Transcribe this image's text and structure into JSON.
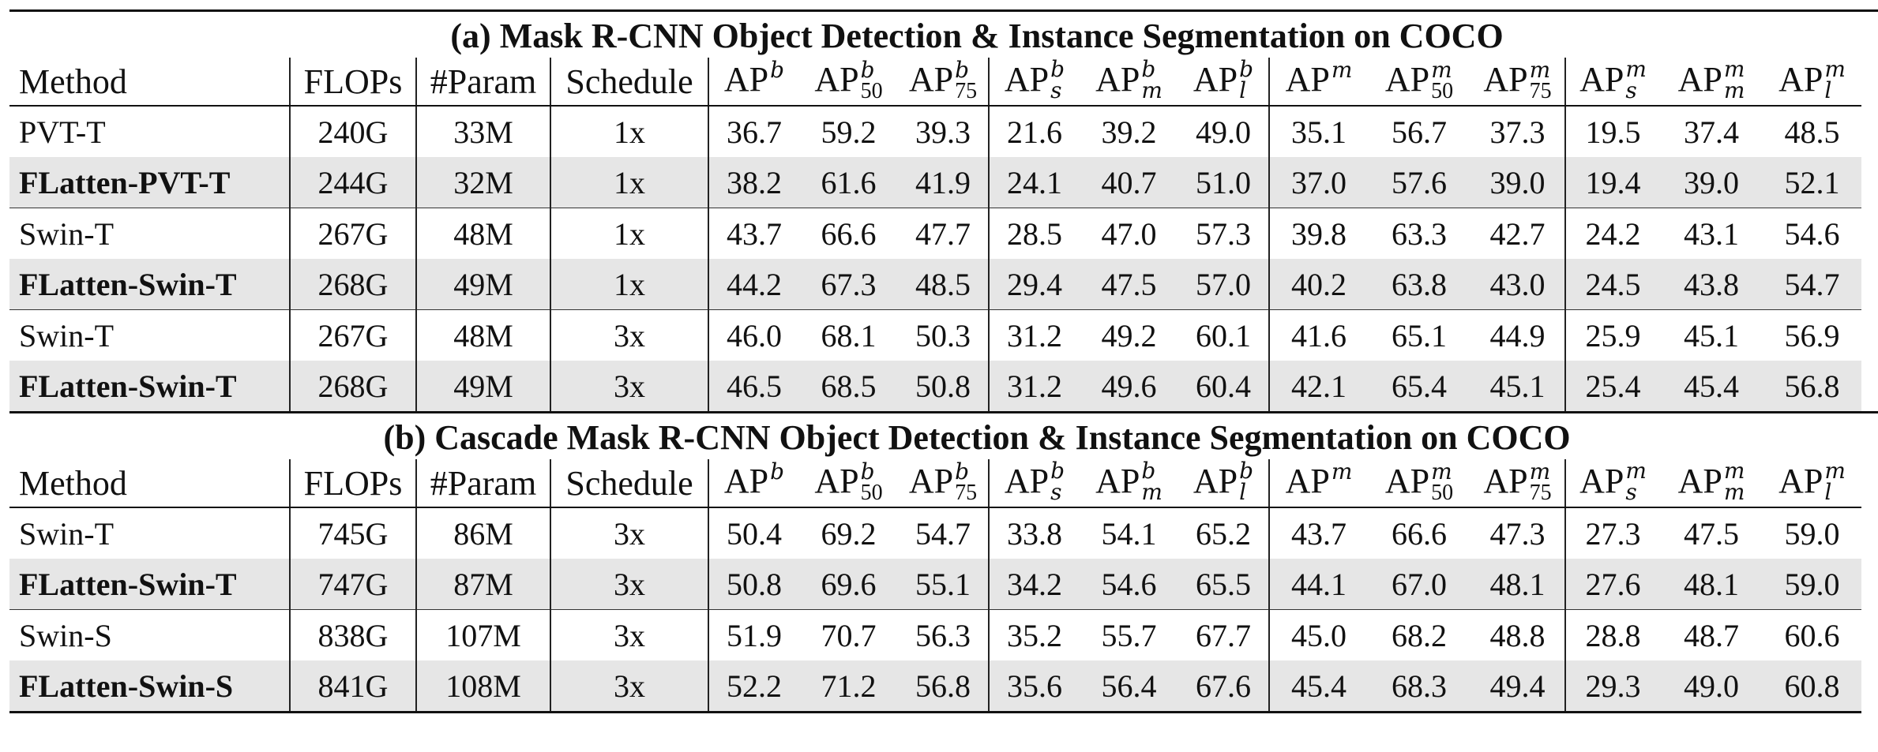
{
  "tables": [
    {
      "title": "(a) Mask R-CNN Object Detection & Instance Segmentation on COCO",
      "columns": {
        "method": "Method",
        "flops": "FLOPs",
        "param": "#Param",
        "schedule": "Schedule",
        "ap": [
          {
            "base": "AP",
            "sup": "b",
            "sub": ""
          },
          {
            "base": "AP",
            "sup": "b",
            "sub": "50"
          },
          {
            "base": "AP",
            "sup": "b",
            "sub": "75"
          },
          {
            "base": "AP",
            "sup": "b",
            "sub": "s"
          },
          {
            "base": "AP",
            "sup": "b",
            "sub": "m"
          },
          {
            "base": "AP",
            "sup": "b",
            "sub": "l"
          },
          {
            "base": "AP",
            "sup": "m",
            "sub": ""
          },
          {
            "base": "AP",
            "sup": "m",
            "sub": "50"
          },
          {
            "base": "AP",
            "sup": "m",
            "sub": "75"
          },
          {
            "base": "AP",
            "sup": "m",
            "sub": "s"
          },
          {
            "base": "AP",
            "sup": "m",
            "sub": "m"
          },
          {
            "base": "AP",
            "sup": "m",
            "sub": "l"
          }
        ]
      },
      "rows": [
        {
          "method": "PVT-T",
          "flops": "240G",
          "param": "33M",
          "schedule": "1x",
          "highlight": false,
          "values": [
            "36.7",
            "59.2",
            "39.3",
            "21.6",
            "39.2",
            "49.0",
            "35.1",
            "56.7",
            "37.3",
            "19.5",
            "37.4",
            "48.5"
          ]
        },
        {
          "method": "FLatten-PVT-T",
          "flops": "244G",
          "param": "32M",
          "schedule": "1x",
          "highlight": true,
          "values": [
            "38.2",
            "61.6",
            "41.9",
            "24.1",
            "40.7",
            "51.0",
            "37.0",
            "57.6",
            "39.0",
            "19.4",
            "39.0",
            "52.1"
          ]
        },
        {
          "method": "Swin-T",
          "flops": "267G",
          "param": "48M",
          "schedule": "1x",
          "highlight": false,
          "values": [
            "43.7",
            "66.6",
            "47.7",
            "28.5",
            "47.0",
            "57.3",
            "39.8",
            "63.3",
            "42.7",
            "24.2",
            "43.1",
            "54.6"
          ]
        },
        {
          "method": "FLatten-Swin-T",
          "flops": "268G",
          "param": "49M",
          "schedule": "1x",
          "highlight": true,
          "values": [
            "44.2",
            "67.3",
            "48.5",
            "29.4",
            "47.5",
            "57.0",
            "40.2",
            "63.8",
            "43.0",
            "24.5",
            "43.8",
            "54.7"
          ]
        },
        {
          "method": "Swin-T",
          "flops": "267G",
          "param": "48M",
          "schedule": "3x",
          "highlight": false,
          "values": [
            "46.0",
            "68.1",
            "50.3",
            "31.2",
            "49.2",
            "60.1",
            "41.6",
            "65.1",
            "44.9",
            "25.9",
            "45.1",
            "56.9"
          ]
        },
        {
          "method": "FLatten-Swin-T",
          "flops": "268G",
          "param": "49M",
          "schedule": "3x",
          "highlight": true,
          "values": [
            "46.5",
            "68.5",
            "50.8",
            "31.2",
            "49.6",
            "60.4",
            "42.1",
            "65.4",
            "45.1",
            "25.4",
            "45.4",
            "56.8"
          ]
        }
      ]
    },
    {
      "title": "(b) Cascade Mask R-CNN Object Detection & Instance Segmentation on COCO",
      "columns": {
        "method": "Method",
        "flops": "FLOPs",
        "param": "#Param",
        "schedule": "Schedule",
        "ap": [
          {
            "base": "AP",
            "sup": "b",
            "sub": ""
          },
          {
            "base": "AP",
            "sup": "b",
            "sub": "50"
          },
          {
            "base": "AP",
            "sup": "b",
            "sub": "75"
          },
          {
            "base": "AP",
            "sup": "b",
            "sub": "s"
          },
          {
            "base": "AP",
            "sup": "b",
            "sub": "m"
          },
          {
            "base": "AP",
            "sup": "b",
            "sub": "l"
          },
          {
            "base": "AP",
            "sup": "m",
            "sub": ""
          },
          {
            "base": "AP",
            "sup": "m",
            "sub": "50"
          },
          {
            "base": "AP",
            "sup": "m",
            "sub": "75"
          },
          {
            "base": "AP",
            "sup": "m",
            "sub": "s"
          },
          {
            "base": "AP",
            "sup": "m",
            "sub": "m"
          },
          {
            "base": "AP",
            "sup": "m",
            "sub": "l"
          }
        ]
      },
      "rows": [
        {
          "method": "Swin-T",
          "flops": "745G",
          "param": "86M",
          "schedule": "3x",
          "highlight": false,
          "values": [
            "50.4",
            "69.2",
            "54.7",
            "33.8",
            "54.1",
            "65.2",
            "43.7",
            "66.6",
            "47.3",
            "27.3",
            "47.5",
            "59.0"
          ]
        },
        {
          "method": "FLatten-Swin-T",
          "flops": "747G",
          "param": "87M",
          "schedule": "3x",
          "highlight": true,
          "values": [
            "50.8",
            "69.6",
            "55.1",
            "34.2",
            "54.6",
            "65.5",
            "44.1",
            "67.0",
            "48.1",
            "27.6",
            "48.1",
            "59.0"
          ]
        },
        {
          "method": "Swin-S",
          "flops": "838G",
          "param": "107M",
          "schedule": "3x",
          "highlight": false,
          "values": [
            "51.9",
            "70.7",
            "56.3",
            "35.2",
            "55.7",
            "67.7",
            "45.0",
            "68.2",
            "48.8",
            "28.8",
            "48.7",
            "60.6"
          ]
        },
        {
          "method": "FLatten-Swin-S",
          "flops": "841G",
          "param": "108M",
          "schedule": "3x",
          "highlight": true,
          "values": [
            "52.2",
            "71.2",
            "56.8",
            "35.6",
            "56.4",
            "67.6",
            "45.4",
            "68.3",
            "49.4",
            "29.3",
            "49.0",
            "60.8"
          ]
        }
      ]
    }
  ]
}
